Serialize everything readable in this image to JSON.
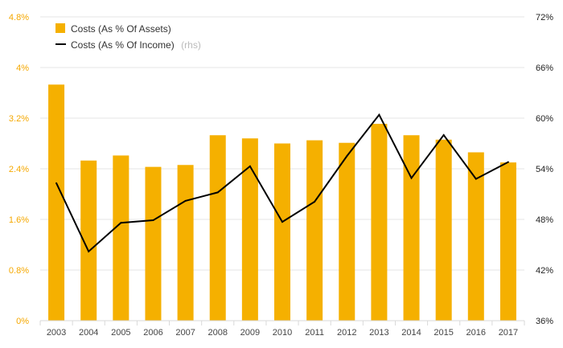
{
  "colors": {
    "bar": "#f5b000",
    "line": "#000000",
    "grid": "#e6e6e6",
    "left_axis_text": "#f5a800",
    "right_axis_text": "#222222"
  },
  "chart_data": {
    "type": "bar",
    "title": "",
    "xlabel": "",
    "ylabel": "",
    "categories": [
      "2003",
      "2004",
      "2005",
      "2006",
      "2007",
      "2008",
      "2009",
      "2010",
      "2011",
      "2012",
      "2013",
      "2014",
      "2015",
      "2016",
      "2017"
    ],
    "ylim": [
      0,
      4.8
    ],
    "y2lim": [
      36,
      72
    ],
    "left_ticks": [
      "0%",
      "0.8%",
      "1.6%",
      "2.4%",
      "3.2%",
      "4%",
      "4.8%"
    ],
    "left_tick_values": [
      0,
      0.8,
      1.6,
      2.4,
      3.2,
      4.0,
      4.8
    ],
    "right_ticks": [
      "36%",
      "42%",
      "48%",
      "54%",
      "60%",
      "66%",
      "72%"
    ],
    "right_tick_values": [
      36,
      42,
      48,
      54,
      60,
      66,
      72
    ],
    "series": [
      {
        "name": "Costs (As % Of Assets)",
        "type": "bar",
        "axis": "left",
        "values": [
          3.73,
          2.53,
          2.61,
          2.43,
          2.46,
          2.93,
          2.88,
          2.8,
          2.85,
          2.81,
          3.11,
          2.93,
          2.86,
          2.66,
          2.5
        ]
      },
      {
        "name": "Costs (As % Of Income)",
        "note": "(rhs)",
        "type": "line",
        "axis": "right",
        "values": [
          52.3,
          44.2,
          47.6,
          47.9,
          50.2,
          51.2,
          54.3,
          47.7,
          50.1,
          55.5,
          60.4,
          52.9,
          58.0,
          52.8,
          54.8
        ]
      }
    ],
    "legend_position": "top-left"
  }
}
